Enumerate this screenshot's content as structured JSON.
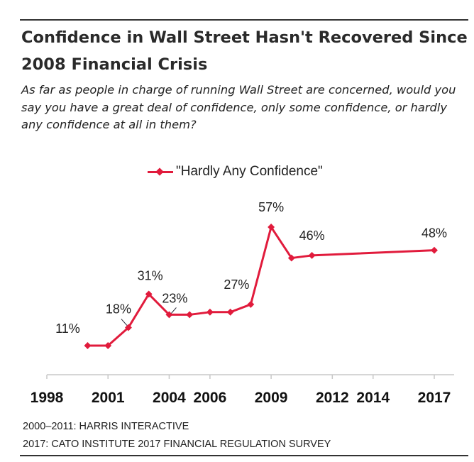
{
  "title": "Confidence in Wall Street Hasn't Recovered Since 2008 Financial Crisis",
  "subtitle": "As far as people in charge of running Wall Street are concerned, would you say you have a great deal of confidence, only some confidence, or hardly any confidence at all in them?",
  "sources": [
    "2000–2011: HARRIS INTERACTIVE",
    "2017: CATO INSTITUTE 2017 FINANCIAL REGULATION SURVEY"
  ],
  "colors": {
    "series": "#e11b3c",
    "axis": "#c8c8c8",
    "text": "#222222"
  },
  "chart_data": {
    "type": "line",
    "title": "Confidence in Wall Street Hasn't Recovered Since 2008 Financial Crisis",
    "xlabel": "",
    "ylabel": "",
    "legend_position": "top-center",
    "grid": false,
    "xlim": [
      1998,
      2017
    ],
    "ylim": [
      0,
      70
    ],
    "x_ticks": [
      "1998",
      "2001",
      "2004",
      "2006",
      "2009",
      "2012",
      "2014",
      "2017"
    ],
    "series": [
      {
        "name": "\"Hardly Any Confidence\"",
        "x": [
          2000.0,
          2001.0,
          2002.0,
          2003.0,
          2004.0,
          2005.0,
          2006.0,
          2007.0,
          2008.0,
          2009.0,
          2010.0,
          2011.0,
          2017.0
        ],
        "values": [
          11,
          11,
          18,
          31,
          23,
          23,
          24,
          24,
          27,
          57,
          45,
          46,
          48
        ]
      }
    ],
    "data_labels": [
      {
        "text": "11%",
        "index": 0
      },
      {
        "text": "18%",
        "index": 2
      },
      {
        "text": "31%",
        "index": 3
      },
      {
        "text": "23%",
        "index": 4
      },
      {
        "text": "27%",
        "index": 8
      },
      {
        "text": "57%",
        "index": 9
      },
      {
        "text": "46%",
        "index": 11
      },
      {
        "text": "48%",
        "index": 12
      }
    ]
  }
}
